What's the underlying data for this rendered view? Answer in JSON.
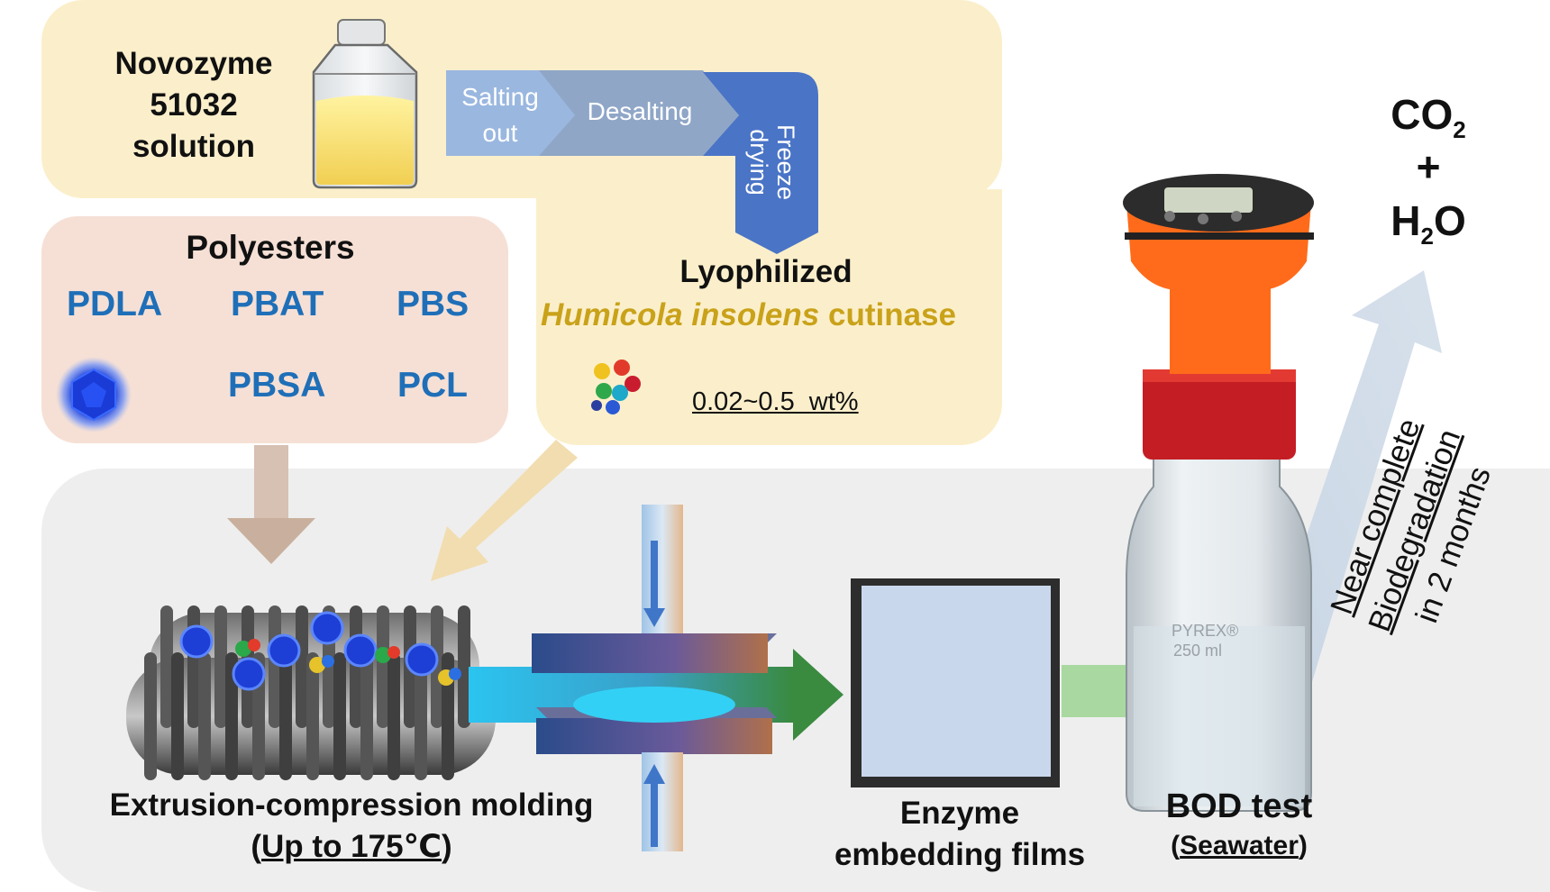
{
  "title_solution": "Novozyme\n51032\nsolution",
  "process": {
    "step1": "Salting\nout",
    "step2": "Desalting",
    "step3": "Freeze\ndrying"
  },
  "product": {
    "line1": "Lyophilized",
    "line2_italic": "Humicola insolens",
    "line2_rest": " cutinase"
  },
  "loading": "0.02~0.5  wt%",
  "polyesters": {
    "heading": "Polyesters",
    "items": [
      "PDLA",
      "PBAT",
      "PBS",
      "PBSA",
      "PCL"
    ]
  },
  "extrusion": {
    "line1": "Extrusion-compression molding",
    "line2_open": "(",
    "line2_under": "Up to 175℃",
    "line2_close": ")"
  },
  "films": "Enzyme\nembedding films",
  "bod": {
    "label": "BOD test",
    "sub_open": "(",
    "sub_under": "Seawater",
    "sub_close": ")"
  },
  "bottle_text": {
    "brand": "PYREX®",
    "volume": "250 ml"
  },
  "products": {
    "co2_a": "CO",
    "co2_sub": "2",
    "plus": "+",
    "h2o_a": "H",
    "h2o_sub": "2",
    "h2o_b": "O"
  },
  "degradation": {
    "line1": "Near complete",
    "line2": "Biodegradation",
    "line3": "in 2 months"
  },
  "colors": {
    "panel_yellow": "#fbefcb",
    "panel_peach": "#f6e0d5",
    "panel_grey": "#eeeeee",
    "polyester_blue": "#1f6fb8",
    "cutinase_gold": "#c9a21a",
    "arrow_green": "#3f8f3c"
  }
}
